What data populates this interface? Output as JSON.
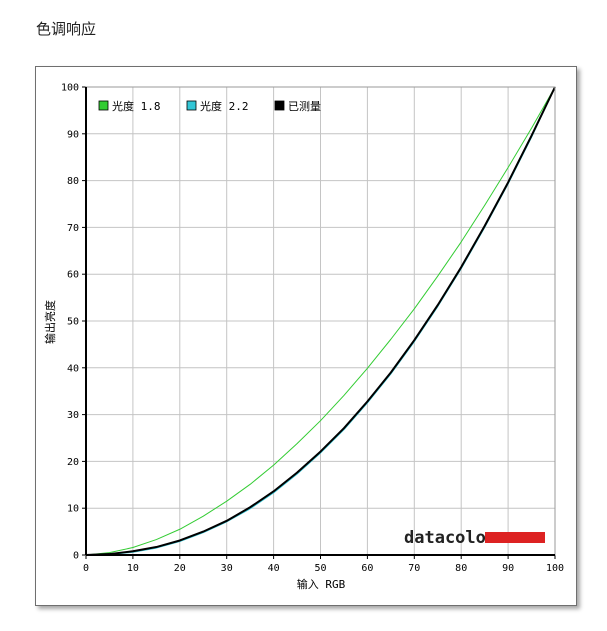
{
  "page": {
    "title": "色调响应"
  },
  "chart_data": {
    "type": "line",
    "title": "",
    "xlabel": "输入 RGB",
    "ylabel": "输出亮度",
    "xlim": [
      0,
      100
    ],
    "ylim": [
      0,
      100
    ],
    "xticks": [
      0,
      10,
      20,
      30,
      40,
      50,
      60,
      70,
      80,
      90,
      100
    ],
    "yticks": [
      0,
      10,
      20,
      30,
      40,
      50,
      60,
      70,
      80,
      90,
      100
    ],
    "grid": true,
    "legend_position": "top-left",
    "x": [
      0,
      5,
      10,
      15,
      20,
      25,
      30,
      35,
      40,
      45,
      50,
      55,
      60,
      65,
      70,
      75,
      80,
      85,
      90,
      95,
      100
    ],
    "series": [
      {
        "name": "光度 1.8",
        "color": "#33cc33",
        "width": 1,
        "values": [
          0,
          0.5,
          1.6,
          3.3,
          5.5,
          8.3,
          11.5,
          15.1,
          19.2,
          23.8,
          28.7,
          34.1,
          39.9,
          46.1,
          52.6,
          59.6,
          66.9,
          74.7,
          82.8,
          91.2,
          100
        ]
      },
      {
        "name": "光度 2.2",
        "color": "#33c6d6",
        "width": 1.2,
        "values": [
          0,
          0.1,
          0.6,
          1.5,
          2.9,
          4.8,
          7.1,
          9.9,
          13.3,
          17.3,
          21.8,
          26.8,
          32.5,
          38.7,
          45.6,
          53.1,
          61.2,
          70.0,
          79.3,
          89.3,
          100
        ]
      },
      {
        "name": "已测量",
        "color": "#000000",
        "width": 2,
        "values": [
          0,
          0.2,
          0.8,
          1.7,
          3.1,
          5.0,
          7.3,
          10.2,
          13.6,
          17.6,
          22.1,
          27.1,
          32.8,
          39.0,
          45.9,
          53.4,
          61.5,
          70.3,
          79.6,
          89.6,
          100
        ]
      }
    ]
  },
  "brand": {
    "name": "datacolor",
    "bar_color": "#dd2222"
  }
}
